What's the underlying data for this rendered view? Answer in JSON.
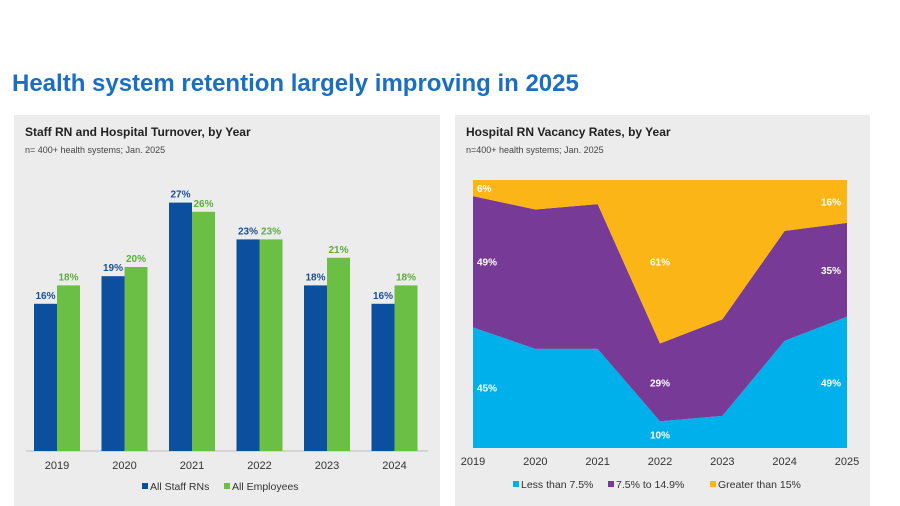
{
  "title": "Health system retention largely improving in 2025",
  "chart_data": [
    {
      "type": "bar",
      "title": "Staff RN and Hospital Turnover, by Year",
      "subtitle": "n= 400+ health systems; Jan. 2025",
      "categories": [
        "2019",
        "2020",
        "2021",
        "2022",
        "2023",
        "2024"
      ],
      "series": [
        {
          "name": "All Staff RNs",
          "color": "#0b4f9e",
          "values": [
            16,
            19,
            27,
            23,
            18,
            16
          ]
        },
        {
          "name": "All Employees",
          "color": "#6bbf45",
          "values": [
            18,
            20,
            26,
            23,
            21,
            18
          ]
        }
      ],
      "ylim": [
        0,
        30
      ],
      "legend": "bottom"
    },
    {
      "type": "area",
      "stacked": true,
      "title": "Hospital RN Vacancy Rates, by Year",
      "subtitle": "n=400+ health systems; Jan. 2025",
      "categories": [
        "2019",
        "2020",
        "2021",
        "2022",
        "2023",
        "2024",
        "2025"
      ],
      "series": [
        {
          "name": "Less than 7.5%",
          "color": "#00b0ea",
          "values": [
            45,
            37,
            37,
            10,
            12,
            40,
            49
          ]
        },
        {
          "name": "7.5% to 14.9%",
          "color": "#773a96",
          "values": [
            49,
            52,
            54,
            29,
            36,
            41,
            35
          ]
        },
        {
          "name": "Greater than 15%",
          "color": "#fbb516",
          "values": [
            6,
            11,
            9,
            61,
            52,
            19,
            16
          ]
        }
      ],
      "labels": [
        {
          "series": 0,
          "index": 0,
          "text": "45%"
        },
        {
          "series": 0,
          "index": 3,
          "text": "10%"
        },
        {
          "series": 0,
          "index": 6,
          "text": "49%"
        },
        {
          "series": 1,
          "index": 0,
          "text": "49%"
        },
        {
          "series": 1,
          "index": 3,
          "text": "29%"
        },
        {
          "series": 1,
          "index": 6,
          "text": "35%"
        },
        {
          "series": 2,
          "index": 0,
          "text": "6%"
        },
        {
          "series": 2,
          "index": 3,
          "text": "61%"
        },
        {
          "series": 2,
          "index": 6,
          "text": "16%"
        }
      ],
      "ylim": [
        0,
        100
      ],
      "legend": "bottom"
    }
  ]
}
